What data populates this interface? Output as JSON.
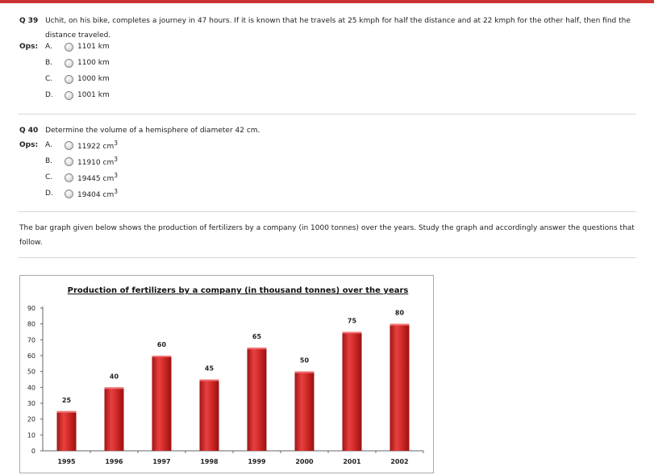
{
  "q39": {
    "number": "Q 39",
    "text_line1": "Uchit, on his bike, completes a journey in 47 hours. If it is known that he travels at 25 kmph for half the distance and at 22 kmph for the other half, then find the",
    "text_line2": "distance traveled.",
    "ops_label": "Ops:",
    "options": [
      {
        "letter": "A.",
        "text": "1101 km"
      },
      {
        "letter": "B.",
        "text": "1100 km"
      },
      {
        "letter": "C.",
        "text": "1000 km"
      },
      {
        "letter": "D.",
        "text": "1001 km"
      }
    ]
  },
  "q40": {
    "number": "Q 40",
    "text": "Determine the volume of a hemisphere of diameter 42 cm.",
    "ops_label": "Ops:",
    "options": [
      {
        "letter": "A.",
        "text": "11922 cm",
        "sup": "3"
      },
      {
        "letter": "B.",
        "text": "11910 cm",
        "sup": "3"
      },
      {
        "letter": "C.",
        "text": "19445 cm",
        "sup": "3"
      },
      {
        "letter": "D.",
        "text": "19404 cm",
        "sup": "3"
      }
    ]
  },
  "passage": {
    "line1": "The bar graph given below shows the production of fertilizers by a company (in 1000 tonnes) over the years. Study the graph and accordingly answer the questions that",
    "line2": "follow."
  },
  "colors": {
    "accent": "#cc3333",
    "bar": "#d42b2b"
  },
  "chart_data": {
    "type": "bar",
    "title": "Production of fertilizers by a company (in thousand tonnes) over the years",
    "categories": [
      "1995",
      "1996",
      "1997",
      "1998",
      "1999",
      "2000",
      "2001",
      "2002"
    ],
    "values": [
      25,
      40,
      60,
      45,
      65,
      50,
      75,
      80
    ],
    "yticks": [
      0,
      10,
      20,
      30,
      40,
      50,
      60,
      70,
      80,
      90
    ],
    "ylim": [
      0,
      90
    ],
    "xlabel": "",
    "ylabel": "",
    "grid": false,
    "legend": "none"
  }
}
